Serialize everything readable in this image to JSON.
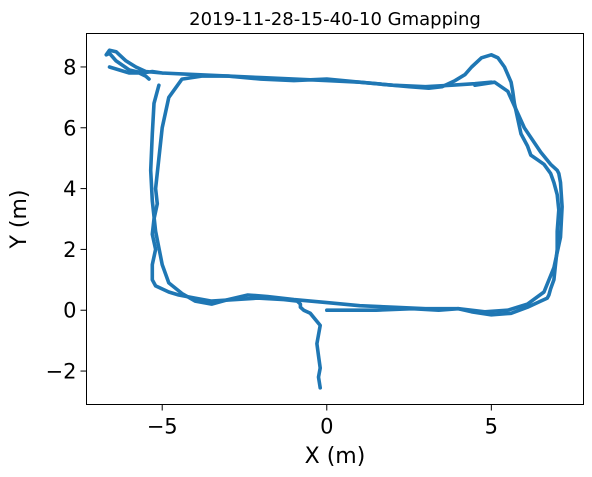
{
  "chart_data": {
    "type": "line",
    "title": "2019-11-28-15-40-10   Gmapping",
    "xlabel": "X (m)",
    "ylabel": "Y (m)",
    "xlim": [
      -7.3,
      7.8
    ],
    "ylim": [
      -3.1,
      9.1
    ],
    "x_ticks": [
      -5,
      0,
      5
    ],
    "y_ticks": [
      -2,
      0,
      2,
      4,
      6,
      8
    ],
    "x_tick_labels": [
      "−5",
      "0",
      "5"
    ],
    "y_tick_labels": [
      "−2",
      "0",
      "2",
      "4",
      "6",
      "8"
    ],
    "grid": false,
    "legend": false,
    "series": [
      {
        "color": "#1f77b4",
        "x": [
          -0.2,
          -0.25,
          -0.2,
          -0.25,
          -0.3,
          -0.2,
          -0.5,
          -0.7,
          -0.8,
          -0.8,
          -0.9,
          -1.3,
          -2.1,
          -3.5,
          -4.0,
          -4.5,
          -4.8,
          -5.2,
          -5.3,
          -5.3,
          -5.2,
          -5.3,
          -5.25,
          -5.15,
          -5.2,
          -5.1,
          -5.0,
          -4.8,
          -4.4,
          -3.8,
          -3.0,
          -2.0,
          -1.0,
          0.0,
          1.0,
          2.5,
          3.1,
          3.5,
          3.9,
          4.2,
          4.4,
          4.7,
          5.0,
          5.2,
          5.4,
          5.6,
          5.65,
          5.7,
          5.8,
          5.9,
          6.1,
          6.2,
          6.4,
          6.6,
          6.8,
          6.9,
          7.0,
          7.05,
          7.0,
          7.0,
          6.95,
          6.9,
          6.8,
          6.75,
          6.7,
          6.5,
          6.1,
          5.6,
          5.0,
          4.4,
          4.0,
          3.4,
          2.6,
          1.5,
          0.0
        ],
        "y": [
          -2.55,
          -2.2,
          -1.9,
          -1.5,
          -1.1,
          -0.5,
          -0.1,
          0.0,
          0.1,
          0.2,
          0.3,
          0.35,
          0.4,
          0.3,
          0.4,
          0.5,
          0.6,
          0.8,
          1.0,
          1.5,
          2.0,
          2.5,
          3.0,
          3.5,
          4.0,
          5.0,
          6.0,
          7.0,
          7.6,
          7.7,
          7.7,
          7.6,
          7.55,
          7.6,
          7.5,
          7.35,
          7.3,
          7.35,
          7.55,
          7.75,
          8.0,
          8.3,
          8.4,
          8.3,
          8.0,
          7.5,
          7.2,
          6.8,
          6.3,
          5.8,
          5.4,
          5.1,
          4.95,
          4.8,
          4.5,
          4.2,
          3.8,
          3.3,
          2.6,
          2.0,
          1.5,
          1.0,
          0.7,
          0.5,
          0.4,
          0.3,
          0.1,
          -0.1,
          -0.15,
          -0.05,
          0.05,
          0.0,
          0.05,
          0.0,
          0.0
        ]
      },
      {
        "color": "#1f77b4",
        "x": [
          -5.1,
          -5.25,
          -5.3,
          -5.35,
          -5.3,
          -5.2,
          -5.0,
          -4.8,
          -4.4,
          -4.0,
          -3.5,
          -3.0,
          -2.4,
          -1.8,
          -1.0,
          0.0,
          1.0,
          2.0,
          3.0,
          4.0,
          4.8,
          5.5,
          6.1,
          6.6,
          6.9,
          7.1,
          7.15,
          7.1,
          7.05,
          7.0,
          6.8,
          6.5,
          6.0,
          5.5,
          5.1,
          4.5
        ],
        "y": [
          7.4,
          6.8,
          5.8,
          4.6,
          3.6,
          2.6,
          1.5,
          0.9,
          0.55,
          0.3,
          0.2,
          0.35,
          0.5,
          0.45,
          0.35,
          0.25,
          0.15,
          0.1,
          0.05,
          0.05,
          -0.05,
          0.0,
          0.2,
          0.6,
          1.4,
          2.4,
          3.4,
          4.2,
          4.5,
          4.6,
          4.8,
          5.2,
          6.0,
          7.2,
          7.5,
          7.4
        ]
      },
      {
        "color": "#1f77b4",
        "x": [
          -5.0,
          -5.3,
          -5.6,
          -6.0,
          -6.4,
          -6.6,
          -6.7,
          -6.6,
          -6.4,
          -6.3,
          -6.1,
          -5.8,
          -5.5,
          -5.0,
          -4.0,
          -3.0,
          -2.0,
          -1.0,
          0.0,
          1.0,
          2.0,
          3.0,
          3.8,
          4.5,
          5.0
        ],
        "y": [
          7.8,
          7.85,
          7.8,
          7.9,
          8.2,
          8.45,
          8.4,
          8.55,
          8.5,
          8.4,
          8.2,
          8.0,
          7.85,
          7.8,
          7.75,
          7.7,
          7.65,
          7.6,
          7.55,
          7.5,
          7.4,
          7.35,
          7.4,
          7.45,
          7.5
        ]
      },
      {
        "color": "#1f77b4",
        "x": [
          -6.6,
          -6.3,
          -6.0,
          -5.7,
          -5.5,
          -5.4
        ],
        "y": [
          8.0,
          7.9,
          7.8,
          7.8,
          7.7,
          7.6
        ]
      }
    ]
  }
}
